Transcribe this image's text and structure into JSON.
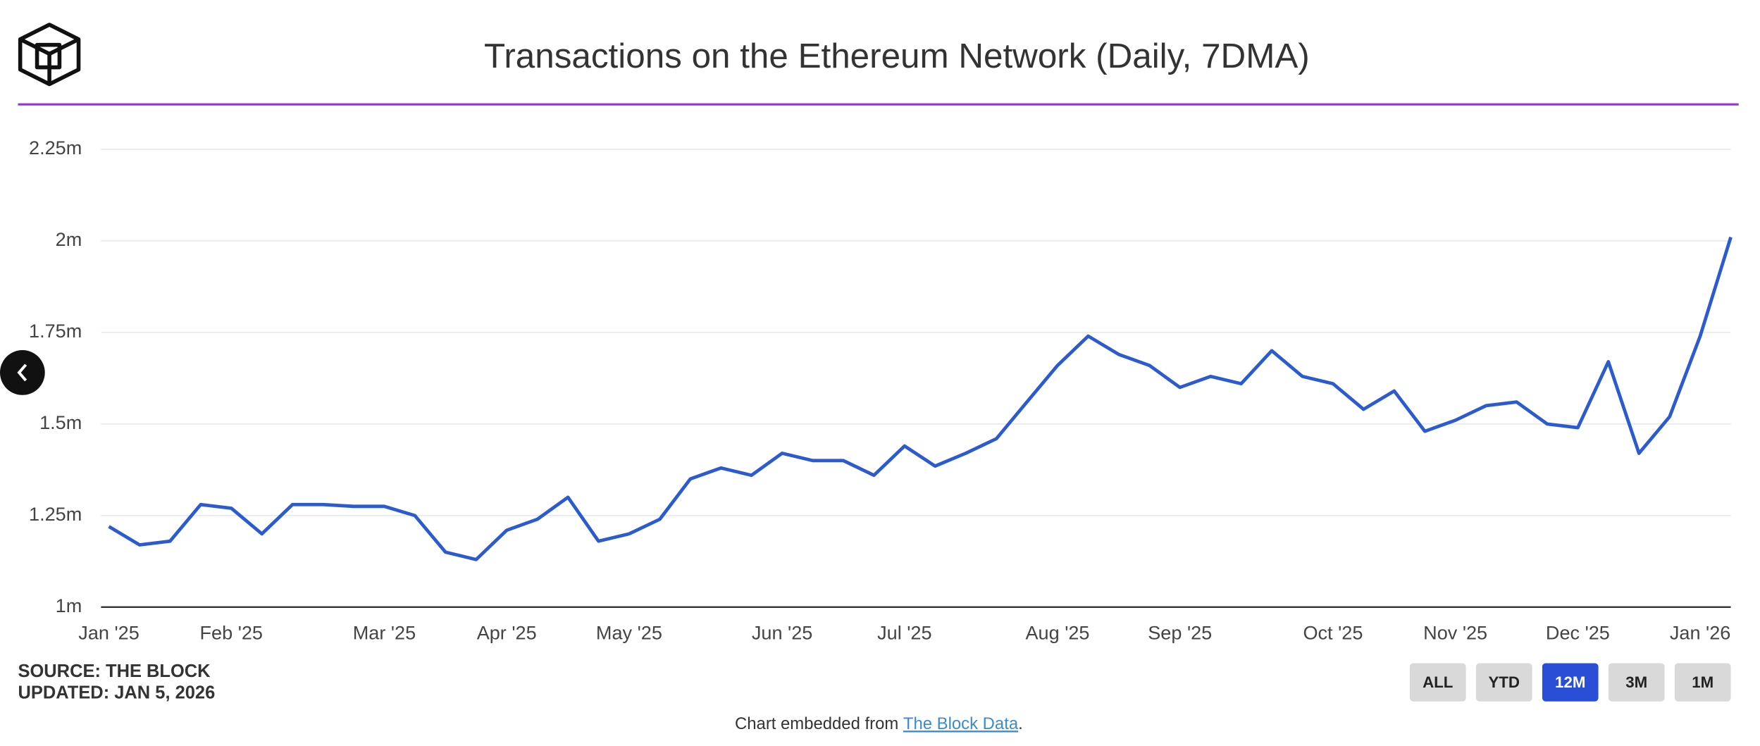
{
  "chart_data": {
    "type": "line",
    "title": "Transactions on the Ethereum Network (Daily, 7DMA)",
    "categories": [
      "Jan '25",
      null,
      null,
      null,
      "Feb '25",
      null,
      null,
      null,
      null,
      "Mar '25",
      null,
      null,
      null,
      "Apr '25",
      null,
      null,
      null,
      "May '25",
      null,
      null,
      null,
      null,
      "Jun '25",
      null,
      null,
      null,
      "Jul '25",
      null,
      null,
      null,
      null,
      "Aug '25",
      null,
      null,
      null,
      "Sep '25",
      null,
      null,
      null,
      null,
      "Oct '25",
      null,
      null,
      null,
      "Nov '25",
      null,
      null,
      null,
      "Dec '25",
      null,
      null,
      null,
      "Jan '26",
      null
    ],
    "values": [
      1220000,
      1170000,
      1180000,
      1280000,
      1270000,
      1200000,
      1280000,
      1280000,
      1275000,
      1275000,
      1250000,
      1150000,
      1130000,
      1210000,
      1240000,
      1300000,
      1180000,
      1200000,
      1240000,
      1350000,
      1380000,
      1360000,
      1420000,
      1400000,
      1400000,
      1360000,
      1440000,
      1385000,
      1420000,
      1460000,
      1560000,
      1660000,
      1740000,
      1690000,
      1660000,
      1600000,
      1630000,
      1610000,
      1700000,
      1630000,
      1610000,
      1540000,
      1590000,
      1480000,
      1510000,
      1550000,
      1560000,
      1500000,
      1490000,
      1670000,
      1420000,
      1520000,
      1740000,
      2010000
    ],
    "color": "#2c5bd0",
    "ylim": [
      1000000,
      2250000
    ],
    "yticks": [
      {
        "value": 1000000,
        "label": "1m"
      },
      {
        "value": 1250000,
        "label": "1.25m"
      },
      {
        "value": 1500000,
        "label": "1.5m"
      },
      {
        "value": 1750000,
        "label": "1.75m"
      },
      {
        "value": 2000000,
        "label": "2m"
      },
      {
        "value": 2250000,
        "label": "2.25m"
      }
    ],
    "grid": true
  },
  "source": "SOURCE: THE BLOCK",
  "updated": "UPDATED: JAN 5, 2026",
  "range_buttons": [
    "ALL",
    "YTD",
    "12M",
    "3M",
    "1M"
  ],
  "active_range": 2,
  "embed_text": "Chart embedded from ",
  "embed_link": "The Block Data",
  "embed_suffix": "."
}
